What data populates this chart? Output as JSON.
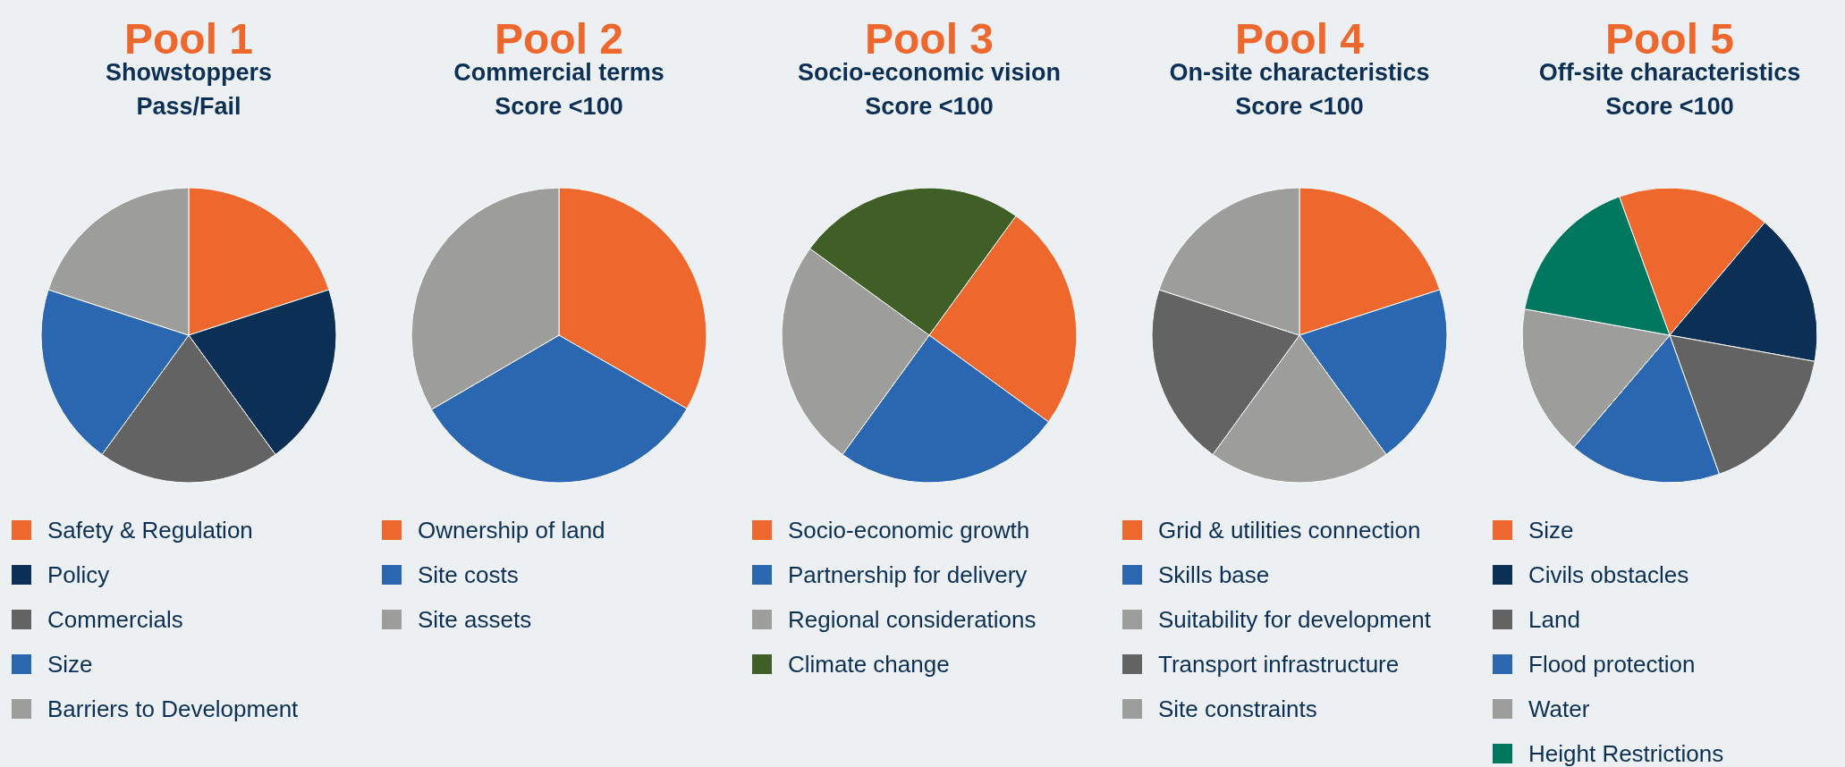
{
  "chart_data": [
    {
      "type": "pie",
      "title": "Pool 1",
      "subtitle": "Showstoppers\nPass/Fail",
      "categories": [
        "Safety & Regulation",
        "Policy",
        "Commercials",
        "Size",
        "Barriers to Development"
      ],
      "values": [
        20,
        20,
        20,
        20,
        20
      ],
      "colors": [
        "#ee672d",
        "#0b2f55",
        "#636363",
        "#2b67b1",
        "#9d9d9c"
      ],
      "legend": "bottom"
    },
    {
      "type": "pie",
      "title": "Pool 2",
      "subtitle": "Commercial terms\nScore <100",
      "categories": [
        "Ownership of land",
        "Site costs",
        "Site assets"
      ],
      "values": [
        33.3,
        33.3,
        33.4
      ],
      "colors": [
        "#ee672d",
        "#2b67b1",
        "#9d9d9c"
      ],
      "legend": "bottom"
    },
    {
      "type": "pie",
      "title": "Pool 3",
      "subtitle": "Socio-economic vision\nScore <100",
      "categories": [
        "Socio-economic growth",
        "Partnership for delivery",
        "Regional considerations",
        "Climate change"
      ],
      "values": [
        25,
        25,
        25,
        25
      ],
      "colors": [
        "#ee672d",
        "#2b67b1",
        "#9d9d9c",
        "#3f5f26"
      ],
      "legend": "bottom"
    },
    {
      "type": "pie",
      "title": "Pool 4",
      "subtitle": "On-site characteristics\nScore <100",
      "categories": [
        "Grid & utilities connection",
        "Skills base",
        "Suitability for development",
        "Transport infrastructure",
        "Site constraints"
      ],
      "values": [
        20,
        20,
        20,
        20,
        20
      ],
      "colors": [
        "#ee672d",
        "#2b67b1",
        "#9d9d9c",
        "#636363",
        "#9d9d9c"
      ],
      "legend": "bottom"
    },
    {
      "type": "pie",
      "title": "Pool 5",
      "subtitle": "Off-site characteristics\nScore <100",
      "categories": [
        "Size",
        "Civils obstacles",
        "Land",
        "Flood protection",
        "Water",
        "Height Restrictions"
      ],
      "values": [
        16.7,
        16.7,
        16.7,
        16.7,
        16.6,
        16.6
      ],
      "colors": [
        "#ee672d",
        "#0b2f55",
        "#636363",
        "#2b67b1",
        "#9d9d9c",
        "#00775f"
      ],
      "legend": "bottom"
    }
  ]
}
